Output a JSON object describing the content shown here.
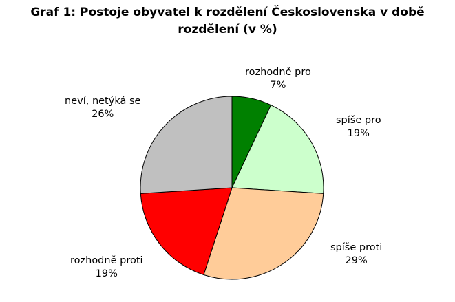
{
  "chart_data": {
    "type": "pie",
    "title_lines": [
      "Graf 1: Postoje obyvatel k rozdělení Československa v době",
      "rozdělení (v %)"
    ],
    "slices": [
      {
        "label": "rozhodně pro",
        "value": 7,
        "value_label": "7%",
        "color": "#008000"
      },
      {
        "label": "spíše pro",
        "value": 19,
        "value_label": "19%",
        "color": "#ccffcc"
      },
      {
        "label": "spíše proti",
        "value": 29,
        "value_label": "29%",
        "color": "#ffcc99"
      },
      {
        "label": "rozhodně proti",
        "value": 19,
        "value_label": "19%",
        "color": "#ff0000"
      },
      {
        "label": "neví, netýká se",
        "value": 26,
        "value_label": "26%",
        "color": "#c0c0c0"
      }
    ]
  }
}
